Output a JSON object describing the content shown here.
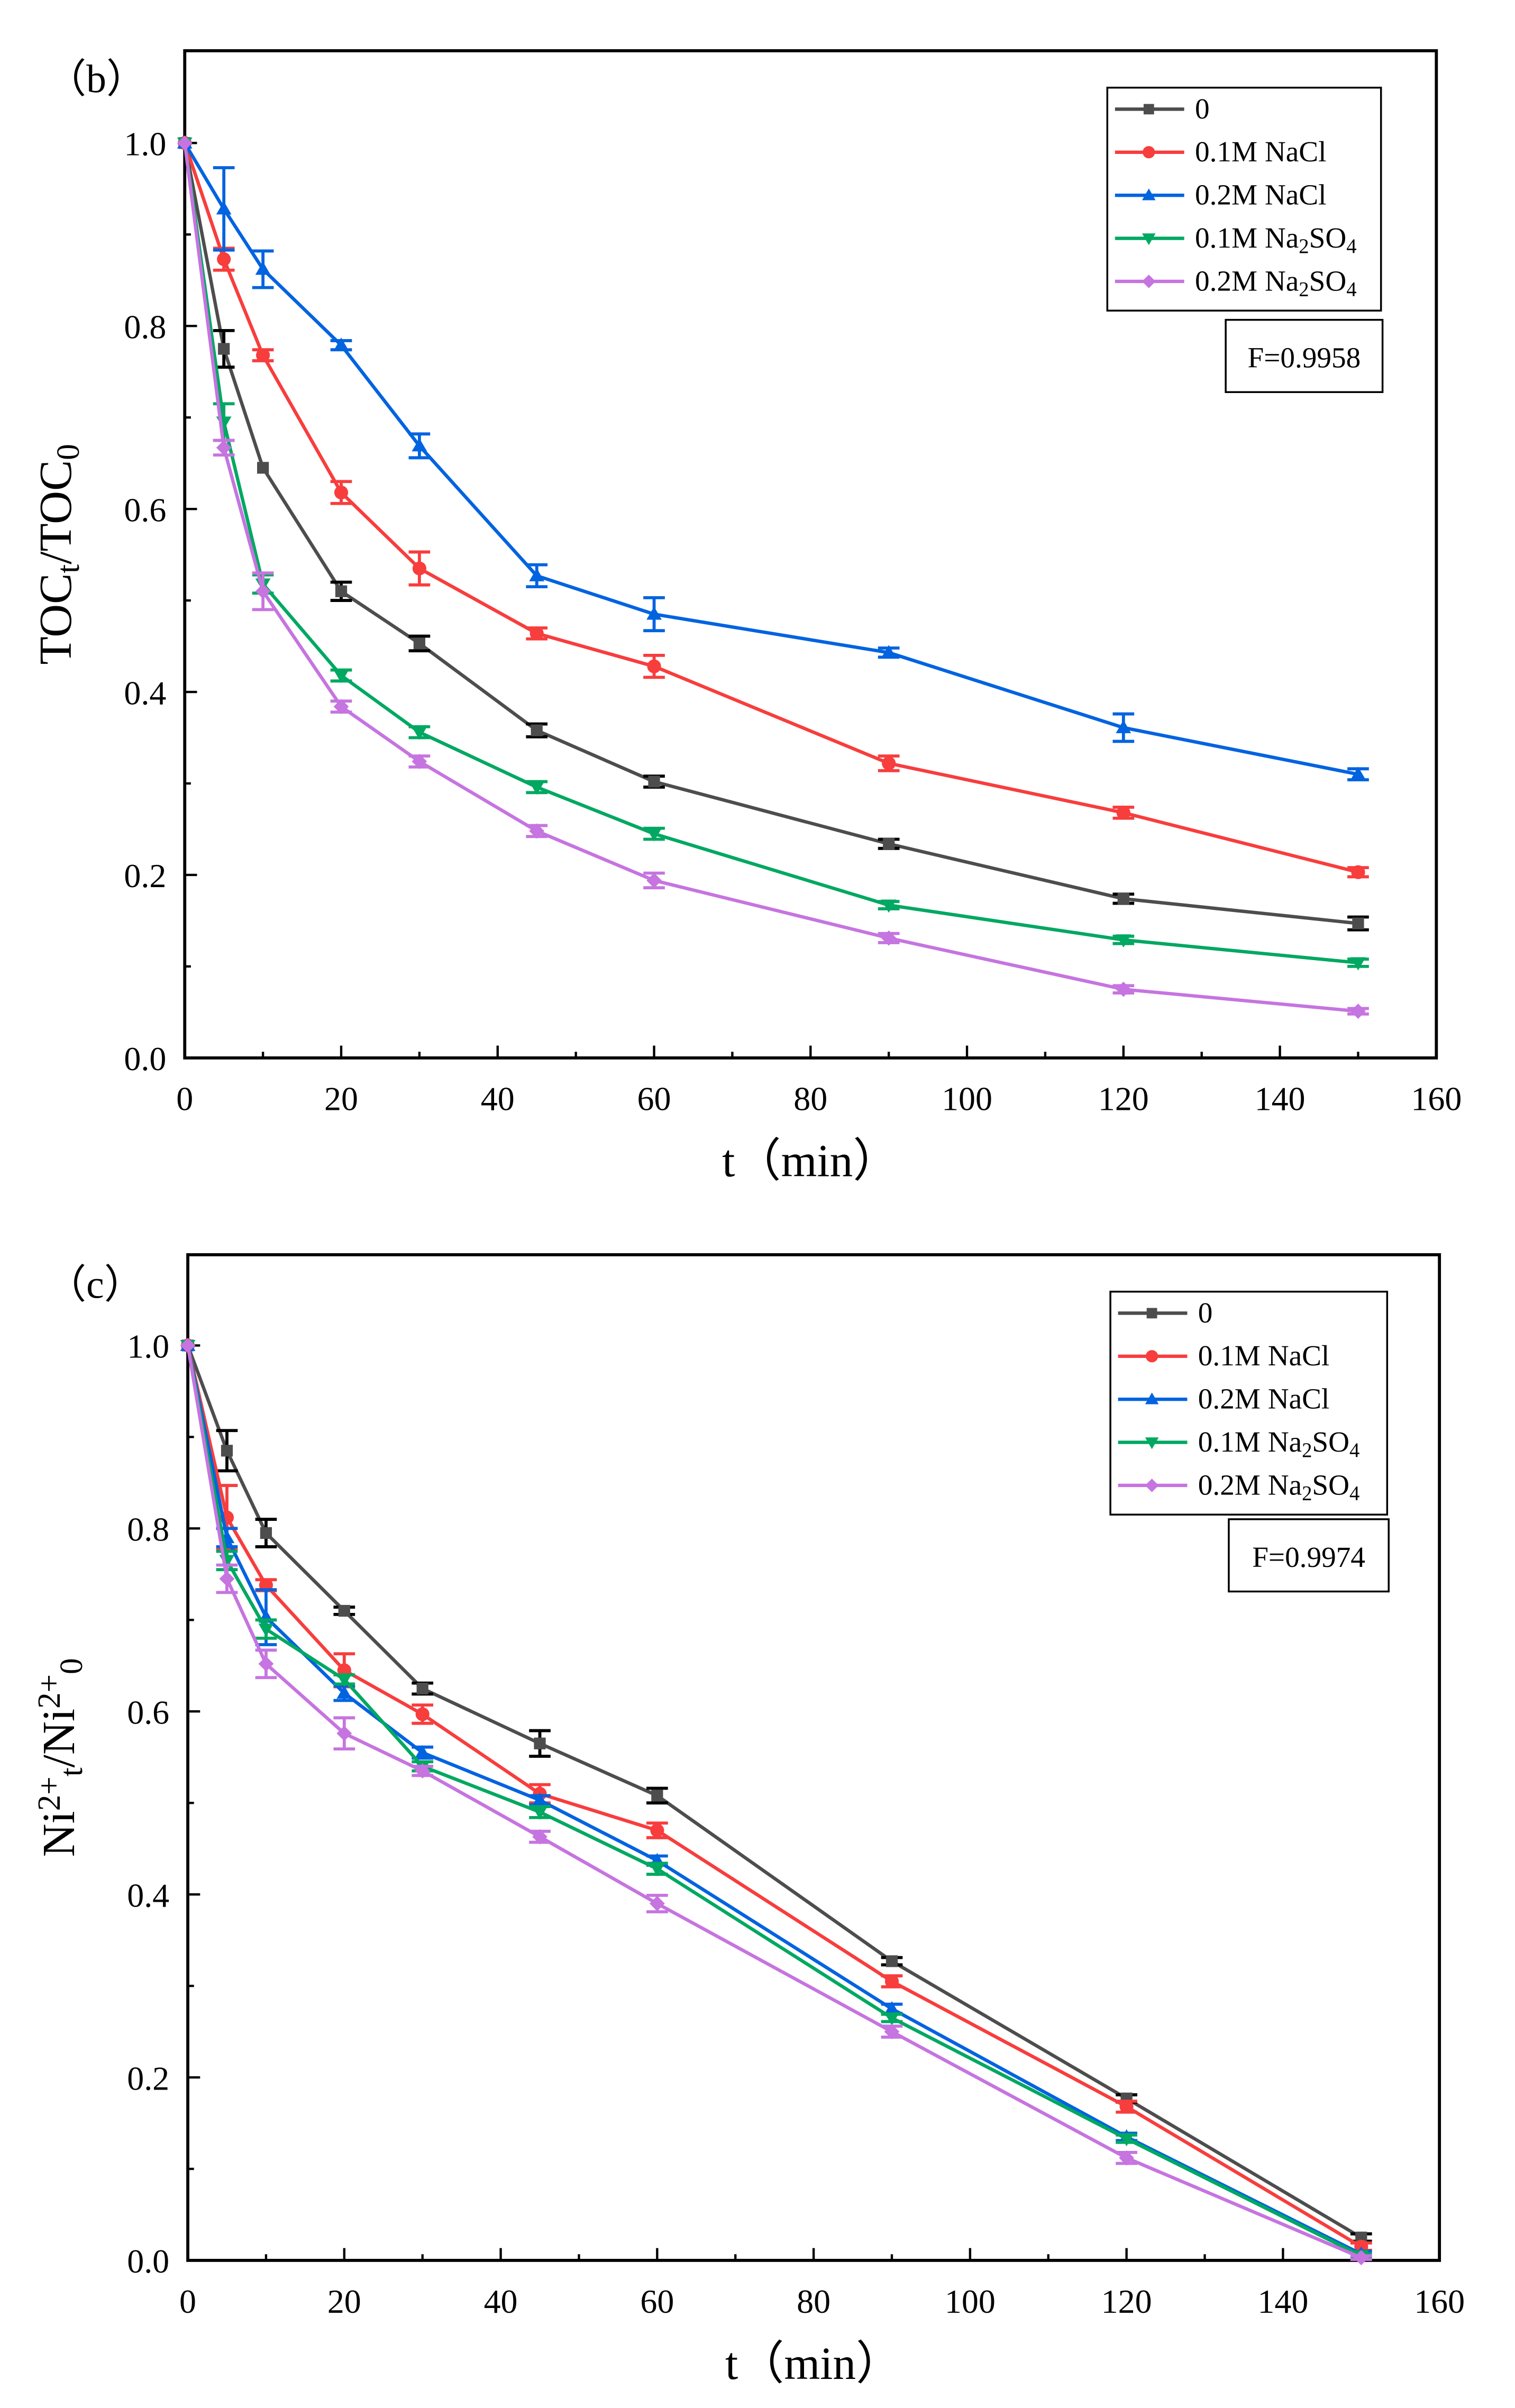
{
  "chart_data": [
    {
      "type": "line",
      "panel_label": "（b）",
      "title": "",
      "xlabel": "t（min）",
      "ylabel_parts": [
        {
          "t": "TOC"
        },
        {
          "t": "t",
          "sub": true
        },
        {
          "t": "/TOC"
        },
        {
          "t": "0",
          "sub": true
        }
      ],
      "xlim": [
        0,
        160
      ],
      "ylim": [
        0,
        1.1
      ],
      "xticks": [
        0,
        20,
        40,
        60,
        80,
        100,
        120,
        140,
        160
      ],
      "yticks": [
        0.0,
        0.2,
        0.4,
        0.6,
        0.8,
        1.0
      ],
      "ytick_labels": [
        "0.0",
        "0.2",
        "0.4",
        "0.6",
        "0.8",
        "1.0"
      ],
      "grid": false,
      "legend_position": "top-right",
      "annotation": "F=0.9958",
      "x": [
        0,
        5,
        10,
        20,
        30,
        45,
        60,
        90,
        120,
        150
      ],
      "series": [
        {
          "label_parts": [
            {
              "t": "0"
            }
          ],
          "color": "#4d4d4d",
          "marker": "square",
          "values": [
            1.0,
            0.775,
            0.645,
            0.51,
            0.453,
            0.358,
            0.302,
            0.234,
            0.174,
            0.147
          ],
          "errors": [
            0,
            0.02,
            0,
            0.01,
            0.008,
            0.007,
            0.006,
            0.005,
            0.005,
            0.007
          ]
        },
        {
          "label_parts": [
            {
              "t": "0.1M NaCl"
            }
          ],
          "color": "#f83d3d",
          "marker": "circle",
          "values": [
            1.0,
            0.873,
            0.768,
            0.618,
            0.535,
            0.464,
            0.428,
            0.322,
            0.268,
            0.203
          ],
          "errors": [
            0,
            0.012,
            0.006,
            0.012,
            0.018,
            0.006,
            0.012,
            0.008,
            0.006,
            0.005
          ]
        },
        {
          "label_parts": [
            {
              "t": "0.2M NaCl"
            }
          ],
          "color": "#0063e0",
          "marker": "triangle-up",
          "values": [
            1.0,
            0.928,
            0.862,
            0.779,
            0.669,
            0.527,
            0.485,
            0.443,
            0.361,
            0.31
          ],
          "errors": [
            0,
            0.045,
            0.02,
            0.005,
            0.013,
            0.012,
            0.018,
            0.005,
            0.015,
            0.006
          ]
        },
        {
          "label_parts": [
            {
              "t": "0.1M Na"
            },
            {
              "t": "2",
              "sub": true
            },
            {
              "t": "SO"
            },
            {
              "t": "4",
              "sub": true
            }
          ],
          "color": "#00a862",
          "marker": "triangle-down",
          "values": [
            1.0,
            0.695,
            0.518,
            0.418,
            0.356,
            0.296,
            0.245,
            0.167,
            0.129,
            0.104
          ],
          "errors": [
            0,
            0.02,
            0.01,
            0.006,
            0.006,
            0.006,
            0.006,
            0.004,
            0.004,
            0.004
          ]
        },
        {
          "label_parts": [
            {
              "t": "0.2M Na"
            },
            {
              "t": "2",
              "sub": true
            },
            {
              "t": "SO"
            },
            {
              "t": "4",
              "sub": true
            }
          ],
          "color": "#c674e0",
          "marker": "diamond",
          "values": [
            1.0,
            0.667,
            0.51,
            0.384,
            0.324,
            0.248,
            0.194,
            0.131,
            0.075,
            0.051
          ],
          "errors": [
            0,
            0.008,
            0.02,
            0.006,
            0.006,
            0.006,
            0.008,
            0.005,
            0.004,
            0.003
          ]
        }
      ]
    },
    {
      "type": "line",
      "panel_label": "（c）",
      "title": "",
      "xlabel": "t（min）",
      "ylabel_parts": [
        {
          "t": "Ni"
        },
        {
          "t": "2+",
          "sup": true
        },
        {
          "t": "t",
          "sub": true
        },
        {
          "t": "/Ni"
        },
        {
          "t": "2+",
          "sup": true
        },
        {
          "t": "0",
          "sub": true
        }
      ],
      "xlim": [
        0,
        160
      ],
      "ylim": [
        0,
        1.1
      ],
      "xticks": [
        0,
        20,
        40,
        60,
        80,
        100,
        120,
        140,
        160
      ],
      "yticks": [
        0.0,
        0.2,
        0.4,
        0.6,
        0.8,
        1.0
      ],
      "ytick_labels": [
        "0.0",
        "0.2",
        "0.4",
        "0.6",
        "0.8",
        "1.0"
      ],
      "grid": false,
      "legend_position": "top-right",
      "annotation": "F=0.9974",
      "x": [
        0,
        5,
        10,
        20,
        30,
        45,
        60,
        90,
        120,
        150
      ],
      "series": [
        {
          "label_parts": [
            {
              "t": "0"
            }
          ],
          "color": "#4d4d4d",
          "marker": "square",
          "values": [
            1.0,
            0.885,
            0.795,
            0.71,
            0.625,
            0.565,
            0.508,
            0.327,
            0.177,
            0.025
          ],
          "errors": [
            0,
            0.022,
            0.015,
            0.004,
            0.006,
            0.014,
            0.008,
            0.004,
            0.004,
            0.004
          ]
        },
        {
          "label_parts": [
            {
              "t": "0.1M NaCl"
            }
          ],
          "color": "#f83d3d",
          "marker": "circle",
          "values": [
            1.0,
            0.812,
            0.738,
            0.645,
            0.597,
            0.51,
            0.47,
            0.305,
            0.168,
            0.015
          ],
          "errors": [
            0,
            0.035,
            0.006,
            0.018,
            0.01,
            0.01,
            0.008,
            0.006,
            0.006,
            0.004
          ]
        },
        {
          "label_parts": [
            {
              "t": "0.2M NaCl"
            }
          ],
          "color": "#0063e0",
          "marker": "triangle-up",
          "values": [
            1.0,
            0.79,
            0.703,
            0.62,
            0.555,
            0.503,
            0.437,
            0.275,
            0.135,
            0.007
          ],
          "errors": [
            0,
            0.01,
            0.03,
            0.008,
            0.006,
            0.005,
            0.005,
            0.005,
            0.004,
            0.003
          ]
        },
        {
          "label_parts": [
            {
              "t": "0.1M Na"
            },
            {
              "t": "2",
              "sub": true
            },
            {
              "t": "SO"
            },
            {
              "t": "4",
              "sub": true
            }
          ],
          "color": "#00a862",
          "marker": "triangle-down",
          "values": [
            1.0,
            0.765,
            0.69,
            0.635,
            0.54,
            0.49,
            0.428,
            0.265,
            0.133,
            0.005
          ],
          "errors": [
            0,
            0.01,
            0.01,
            0.005,
            0.005,
            0.006,
            0.006,
            0.004,
            0.004,
            0.002
          ]
        },
        {
          "label_parts": [
            {
              "t": "0.2M Na"
            },
            {
              "t": "2",
              "sub": true
            },
            {
              "t": "SO"
            },
            {
              "t": "4",
              "sub": true
            }
          ],
          "color": "#c674e0",
          "marker": "diamond",
          "values": [
            1.0,
            0.745,
            0.652,
            0.576,
            0.535,
            0.463,
            0.39,
            0.25,
            0.112,
            0.003
          ],
          "errors": [
            0,
            0.015,
            0.015,
            0.017,
            0.005,
            0.006,
            0.009,
            0.006,
            0.006,
            0.002
          ]
        }
      ]
    }
  ]
}
